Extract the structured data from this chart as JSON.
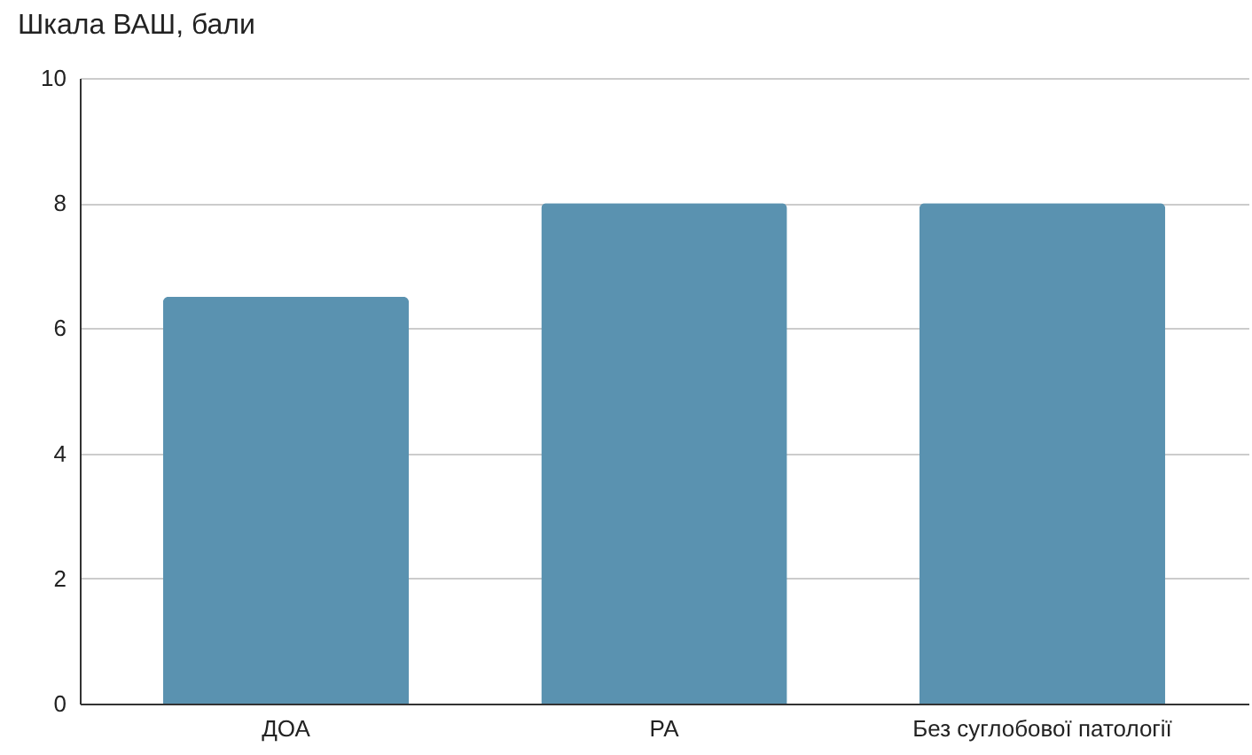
{
  "chart_data": {
    "type": "bar",
    "title": "Шкала ВАШ, бали",
    "categories": [
      "ДОА",
      "РА",
      "Без суглобової патології"
    ],
    "values": [
      6.5,
      8,
      8
    ],
    "color": "#5a92b0",
    "ylim": [
      0,
      10
    ],
    "yticks": [
      0,
      2,
      4,
      6,
      8,
      10
    ],
    "grid": "y"
  }
}
